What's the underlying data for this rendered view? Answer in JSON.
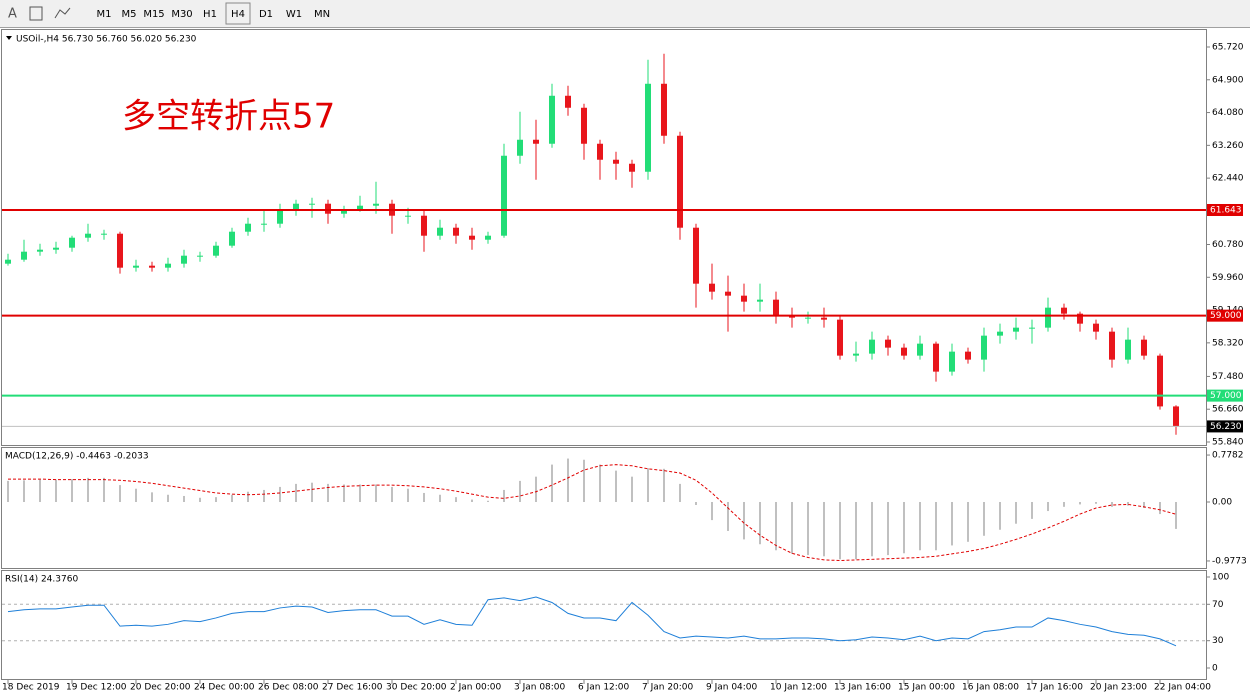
{
  "toolbar": {
    "text_tool": "A",
    "timeframes": [
      "M1",
      "M5",
      "M15",
      "M30",
      "H1",
      "H4",
      "D1",
      "W1",
      "MN"
    ]
  },
  "chart_data": [
    {
      "type": "candlestick",
      "title": "USOil-,H4  56.730 56.760 56.020 56.230",
      "annotation": "多空转折点57",
      "up_color": "#22dd77",
      "down_color": "#e8161c",
      "categories": [
        "18 Dec 2019",
        null,
        null,
        null,
        "19 Dec 12:00",
        null,
        null,
        null,
        "20 Dec 20:00",
        null,
        null,
        null,
        "24 Dec 00:00",
        null,
        null,
        null,
        "26 Dec 08:00",
        null,
        null,
        null,
        "27 Dec 16:00",
        null,
        null,
        null,
        "30 Dec 20:00",
        null,
        null,
        null,
        "2 Jan 00:00",
        null,
        null,
        null,
        "3 Jan 08:00",
        null,
        null,
        null,
        "6 Jan 12:00",
        null,
        null,
        null,
        "7 Jan 20:00",
        null,
        null,
        null,
        "9 Jan 04:00",
        null,
        null,
        null,
        "10 Jan 12:00",
        null,
        null,
        null,
        "13 Jan 16:00",
        null,
        null,
        null,
        "15 Jan 00:00",
        null,
        null,
        null,
        "16 Jan 08:00",
        null,
        null,
        null,
        "17 Jan 16:00",
        null,
        null,
        null,
        "20 Jan 23:00",
        null,
        null,
        null,
        "22 Jan 04:00",
        null
      ],
      "ohlc": [
        [
          60.3,
          60.55,
          60.25,
          60.4
        ],
        [
          60.4,
          60.9,
          60.35,
          60.6
        ],
        [
          60.6,
          60.8,
          60.5,
          60.65
        ],
        [
          60.65,
          60.85,
          60.55,
          60.7
        ],
        [
          60.7,
          61.0,
          60.6,
          60.95
        ],
        [
          60.95,
          61.3,
          60.85,
          61.05
        ],
        [
          61.05,
          61.15,
          60.9,
          61.05
        ],
        [
          61.05,
          61.1,
          60.05,
          60.2
        ],
        [
          60.2,
          60.4,
          60.1,
          60.25
        ],
        [
          60.25,
          60.35,
          60.1,
          60.2
        ],
        [
          60.2,
          60.45,
          60.1,
          60.3
        ],
        [
          60.3,
          60.65,
          60.2,
          60.5
        ],
        [
          60.5,
          60.6,
          60.35,
          60.5
        ],
        [
          60.5,
          60.85,
          60.45,
          60.75
        ],
        [
          60.75,
          61.2,
          60.7,
          61.1
        ],
        [
          61.1,
          61.45,
          61.0,
          61.3
        ],
        [
          61.3,
          61.65,
          61.1,
          61.3
        ],
        [
          61.3,
          61.8,
          61.2,
          61.65
        ],
        [
          61.65,
          61.9,
          61.5,
          61.8
        ],
        [
          61.8,
          61.95,
          61.45,
          61.8
        ],
        [
          61.8,
          61.9,
          61.3,
          61.55
        ],
        [
          61.55,
          61.75,
          61.45,
          61.65
        ],
        [
          61.65,
          62.0,
          61.6,
          61.75
        ],
        [
          61.75,
          62.35,
          61.55,
          61.8
        ],
        [
          61.8,
          61.9,
          61.05,
          61.5
        ],
        [
          61.5,
          61.7,
          61.3,
          61.5
        ],
        [
          61.5,
          61.65,
          60.6,
          61.0
        ],
        [
          61.0,
          61.4,
          60.9,
          61.2
        ],
        [
          61.2,
          61.3,
          60.8,
          61.0
        ],
        [
          61.0,
          61.2,
          60.65,
          60.9
        ],
        [
          60.9,
          61.1,
          60.8,
          61.0
        ],
        [
          61.0,
          63.3,
          60.95,
          63.0
        ],
        [
          63.0,
          64.1,
          62.8,
          63.4
        ],
        [
          63.4,
          63.9,
          62.4,
          63.3
        ],
        [
          63.3,
          64.8,
          63.2,
          64.5
        ],
        [
          64.5,
          64.75,
          64.0,
          64.2
        ],
        [
          64.2,
          64.3,
          62.9,
          63.3
        ],
        [
          63.3,
          63.4,
          62.4,
          62.9
        ],
        [
          62.9,
          63.1,
          62.4,
          62.8
        ],
        [
          62.8,
          62.9,
          62.2,
          62.6
        ],
        [
          62.6,
          65.4,
          62.4,
          64.8
        ],
        [
          64.8,
          65.55,
          63.3,
          63.5
        ],
        [
          63.5,
          63.6,
          60.9,
          61.2
        ],
        [
          61.2,
          61.3,
          59.2,
          59.8
        ],
        [
          59.8,
          60.3,
          59.4,
          59.6
        ],
        [
          59.6,
          60.0,
          58.6,
          59.5
        ],
        [
          59.5,
          59.8,
          59.1,
          59.35
        ],
        [
          59.35,
          59.8,
          59.1,
          59.4
        ],
        [
          59.4,
          59.6,
          58.8,
          59.0
        ],
        [
          59.0,
          59.2,
          58.7,
          58.95
        ],
        [
          58.95,
          59.1,
          58.8,
          58.95
        ],
        [
          58.95,
          59.2,
          58.7,
          58.9
        ],
        [
          58.9,
          59.0,
          57.9,
          58.0
        ],
        [
          58.0,
          58.35,
          57.85,
          58.05
        ],
        [
          58.05,
          58.6,
          57.9,
          58.4
        ],
        [
          58.4,
          58.5,
          58.0,
          58.2
        ],
        [
          58.2,
          58.3,
          57.9,
          58.0
        ],
        [
          58.0,
          58.5,
          57.9,
          58.3
        ],
        [
          58.3,
          58.35,
          57.35,
          57.6
        ],
        [
          57.6,
          58.3,
          57.5,
          58.1
        ],
        [
          58.1,
          58.2,
          57.8,
          57.9
        ],
        [
          57.9,
          58.7,
          57.6,
          58.5
        ],
        [
          58.5,
          58.8,
          58.3,
          58.6
        ],
        [
          58.6,
          58.95,
          58.4,
          58.7
        ],
        [
          58.7,
          58.9,
          58.3,
          58.7
        ],
        [
          58.7,
          59.45,
          58.6,
          59.2
        ],
        [
          59.2,
          59.3,
          58.9,
          59.05
        ],
        [
          59.05,
          59.1,
          58.6,
          58.8
        ],
        [
          58.8,
          58.9,
          58.4,
          58.6
        ],
        [
          58.6,
          58.7,
          57.7,
          57.9
        ],
        [
          57.9,
          58.7,
          57.8,
          58.4
        ],
        [
          58.4,
          58.5,
          57.9,
          58.0
        ],
        [
          58.0,
          58.05,
          56.65,
          56.73
        ],
        [
          56.73,
          56.76,
          56.02,
          56.23
        ]
      ],
      "ylim": [
        55.765,
        66.145
      ],
      "yticks": [
        {
          "value": 65.72,
          "label": "65.720"
        },
        {
          "value": 64.9,
          "label": "64.900"
        },
        {
          "value": 64.08,
          "label": "64.080"
        },
        {
          "value": 63.26,
          "label": "63.260"
        },
        {
          "value": 62.44,
          "label": "62.440"
        },
        {
          "value": 60.78,
          "label": "60.780"
        },
        {
          "value": 59.96,
          "label": "59.960"
        },
        {
          "value": 59.14,
          "label": "59.140"
        },
        {
          "value": 58.32,
          "label": "58.320"
        },
        {
          "value": 57.48,
          "label": "57.480"
        },
        {
          "value": 56.66,
          "label": "56.660"
        },
        {
          "value": 55.84,
          "label": "55.840"
        }
      ],
      "levels": [
        {
          "value": 61.643,
          "color": "#e00000",
          "box": "#e00000"
        },
        {
          "value": 59.0,
          "label": "59.000",
          "color": "#e00000",
          "box": "#e00000"
        },
        {
          "value": 57.0,
          "label": "57.000",
          "color": "#22dd77",
          "box": "#22dd77"
        },
        {
          "value": 56.23,
          "label": "56.230",
          "color": "#c0c0c0",
          "box": "#000000"
        }
      ]
    },
    {
      "type": "macd",
      "title": "MACD(12,26,9) -0.4463 -0.2033",
      "hist_color": "#c0c0c0",
      "signal_color": "#e00000",
      "histogram": [
        0.35,
        0.36,
        0.37,
        0.37,
        0.38,
        0.4,
        0.4,
        0.28,
        0.22,
        0.16,
        0.12,
        0.1,
        0.07,
        0.08,
        0.12,
        0.17,
        0.2,
        0.25,
        0.3,
        0.32,
        0.3,
        0.29,
        0.29,
        0.29,
        0.25,
        0.22,
        0.15,
        0.12,
        0.08,
        0.04,
        0.02,
        0.2,
        0.35,
        0.42,
        0.62,
        0.72,
        0.7,
        0.62,
        0.52,
        0.42,
        0.56,
        0.55,
        0.3,
        -0.05,
        -0.3,
        -0.48,
        -0.62,
        -0.7,
        -0.8,
        -0.86,
        -0.88,
        -0.9,
        -0.95,
        -0.95,
        -0.9,
        -0.88,
        -0.85,
        -0.8,
        -0.8,
        -0.72,
        -0.66,
        -0.56,
        -0.46,
        -0.36,
        -0.28,
        -0.15,
        -0.08,
        -0.04,
        -0.03,
        -0.08,
        -0.06,
        -0.1,
        -0.2,
        -0.4463
      ],
      "signal": [
        0.38,
        0.38,
        0.38,
        0.37,
        0.37,
        0.37,
        0.37,
        0.36,
        0.34,
        0.31,
        0.27,
        0.23,
        0.19,
        0.15,
        0.13,
        0.12,
        0.13,
        0.15,
        0.18,
        0.21,
        0.24,
        0.26,
        0.27,
        0.28,
        0.28,
        0.27,
        0.25,
        0.22,
        0.18,
        0.13,
        0.08,
        0.06,
        0.1,
        0.17,
        0.28,
        0.4,
        0.53,
        0.6,
        0.62,
        0.6,
        0.55,
        0.52,
        0.48,
        0.36,
        0.15,
        -0.1,
        -0.35,
        -0.55,
        -0.72,
        -0.85,
        -0.92,
        -0.96,
        -0.97,
        -0.96,
        -0.95,
        -0.94,
        -0.93,
        -0.92,
        -0.9,
        -0.86,
        -0.82,
        -0.77,
        -0.7,
        -0.62,
        -0.53,
        -0.43,
        -0.32,
        -0.2,
        -0.1,
        -0.05,
        -0.04,
        -0.08,
        -0.13,
        -0.2033
      ],
      "ylim": [
        -1.094,
        0.895
      ],
      "yticks": [
        0.7782,
        {
          "value": 0,
          "label": "0.00"
        },
        -0.9773
      ]
    },
    {
      "type": "rsi",
      "title": "RSI(14) 24.3760",
      "color": "#1e7fd8",
      "values": [
        62,
        64,
        65,
        65,
        67,
        69,
        69,
        46,
        47,
        46,
        48,
        52,
        51,
        55,
        60,
        62,
        62,
        66,
        68,
        67,
        61,
        63,
        64,
        64,
        57,
        57,
        48,
        53,
        48,
        47,
        75,
        77,
        74,
        78,
        72,
        60,
        55,
        55,
        52,
        72,
        58,
        40,
        33,
        35,
        34,
        33,
        35,
        32,
        32,
        33,
        33,
        32,
        30,
        31,
        34,
        33,
        31,
        35,
        30,
        33,
        32,
        40,
        42,
        45,
        45,
        55,
        52,
        48,
        45,
        40,
        37,
        36,
        32,
        24.376
      ],
      "ylim": [
        -13.2,
        106.6
      ],
      "yticks": [
        100,
        70,
        30,
        0
      ],
      "levels": [
        70,
        30
      ]
    }
  ]
}
